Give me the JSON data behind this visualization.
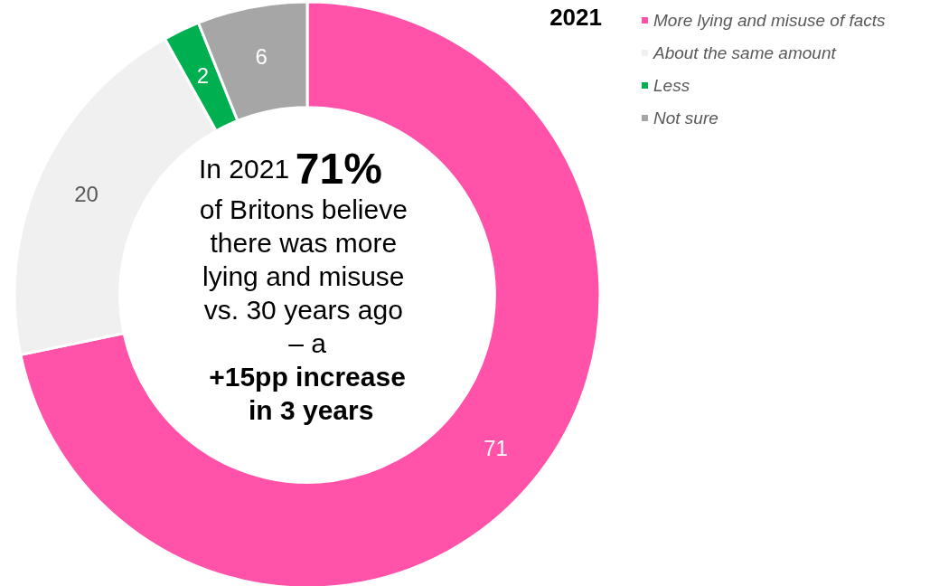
{
  "chart_data": {
    "type": "donut",
    "legend_title": "2021",
    "categories": [
      "More lying and misuse of facts",
      "About the same amount",
      "Less",
      "Not sure"
    ],
    "values": [
      71,
      20,
      2,
      6
    ],
    "colors": [
      "#ff52a8",
      "#f0f0f0",
      "#00b050",
      "#a6a6a6"
    ],
    "data_labels": true,
    "legend": "top right",
    "annotations": [
      "In 2021",
      "71%",
      "of Britons believe there was more lying and misuse vs. 30 years ago – a",
      "+15pp increase in 3 years"
    ]
  }
}
